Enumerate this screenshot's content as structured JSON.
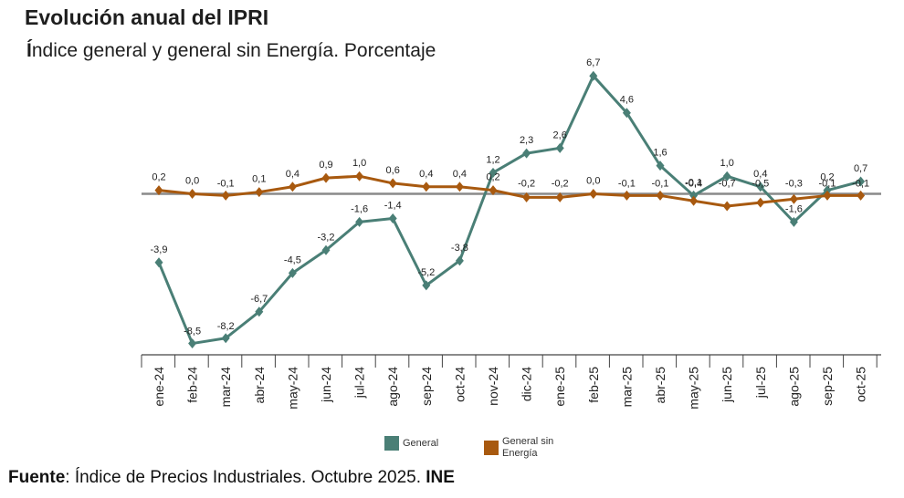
{
  "header": {
    "title": "Evolución anual del IPRI",
    "subtitle_first": "Í",
    "subtitle_rest": "ndice general y general sin Energía. Porcentaje"
  },
  "chart_data": {
    "type": "line",
    "title": "Evolución anual del IPRI",
    "subtitle": "Índice general y general sin Energía. Porcentaje",
    "categories": [
      "ene-24",
      "feb-24",
      "mar-24",
      "abr-24",
      "may-24",
      "jun-24",
      "jul-24",
      "ago-24",
      "sep-24",
      "oct-24",
      "nov-24",
      "dic-24",
      "ene-25",
      "feb-25",
      "mar-25",
      "abr-25",
      "may-25",
      "jun-25",
      "jul-25",
      "ago-25",
      "sep-25",
      "oct-25"
    ],
    "series": [
      {
        "name": "General",
        "color": "#4a7f76",
        "values": [
          -3.9,
          -8.5,
          -8.2,
          -6.7,
          -4.5,
          -3.2,
          -1.6,
          -1.4,
          -5.2,
          -3.8,
          1.2,
          2.3,
          2.6,
          6.7,
          4.6,
          1.6,
          -0.1,
          1.0,
          0.4,
          -1.6,
          0.2,
          0.7
        ],
        "labels": [
          "-3,9",
          "-8,5",
          "-8,2",
          "-6,7",
          "-4,5",
          "-3,2",
          "-1,6",
          "-1,4",
          "-5,2",
          "-3,8",
          "1,2",
          "2,3",
          "2,6",
          "6,7",
          "4,6",
          "1,6",
          "-0,1",
          "1,0",
          "0,4",
          "-1,6",
          "0,2",
          "0,7"
        ]
      },
      {
        "name": "General sin Energía",
        "color": "#a8590f",
        "values": [
          0.2,
          0.0,
          -0.1,
          0.1,
          0.4,
          0.9,
          1.0,
          0.6,
          0.4,
          0.4,
          0.2,
          -0.2,
          -0.2,
          0.0,
          -0.1,
          -0.1,
          -0.4,
          -0.7,
          -0.5,
          -0.3,
          -0.1,
          -0.1
        ],
        "labels": [
          "0,2",
          "0,0",
          "-0,1",
          "0,1",
          "0,4",
          "0,9",
          "1,0",
          "0,6",
          "0,4",
          "0,4",
          "0,2",
          "-0,2",
          "-0,2",
          "0,0",
          "-0,1",
          "-0,1",
          "-0,4",
          "-0,7",
          "-0,5",
          "-0,3",
          "-0,1",
          "-0,1"
        ]
      }
    ],
    "ylim": [
      -9,
      7
    ],
    "xlabel": "",
    "ylabel": "",
    "grid": false,
    "legend_position": "bottom-center"
  },
  "legend": {
    "general": "General",
    "sin_energia_line1": "General sin",
    "sin_energia_line2": "Energía"
  },
  "footer": {
    "source_label": "Fuente",
    "source_text": ": Índice de Precios Industriales. Octubre 2025. ",
    "source_org": "INE"
  }
}
